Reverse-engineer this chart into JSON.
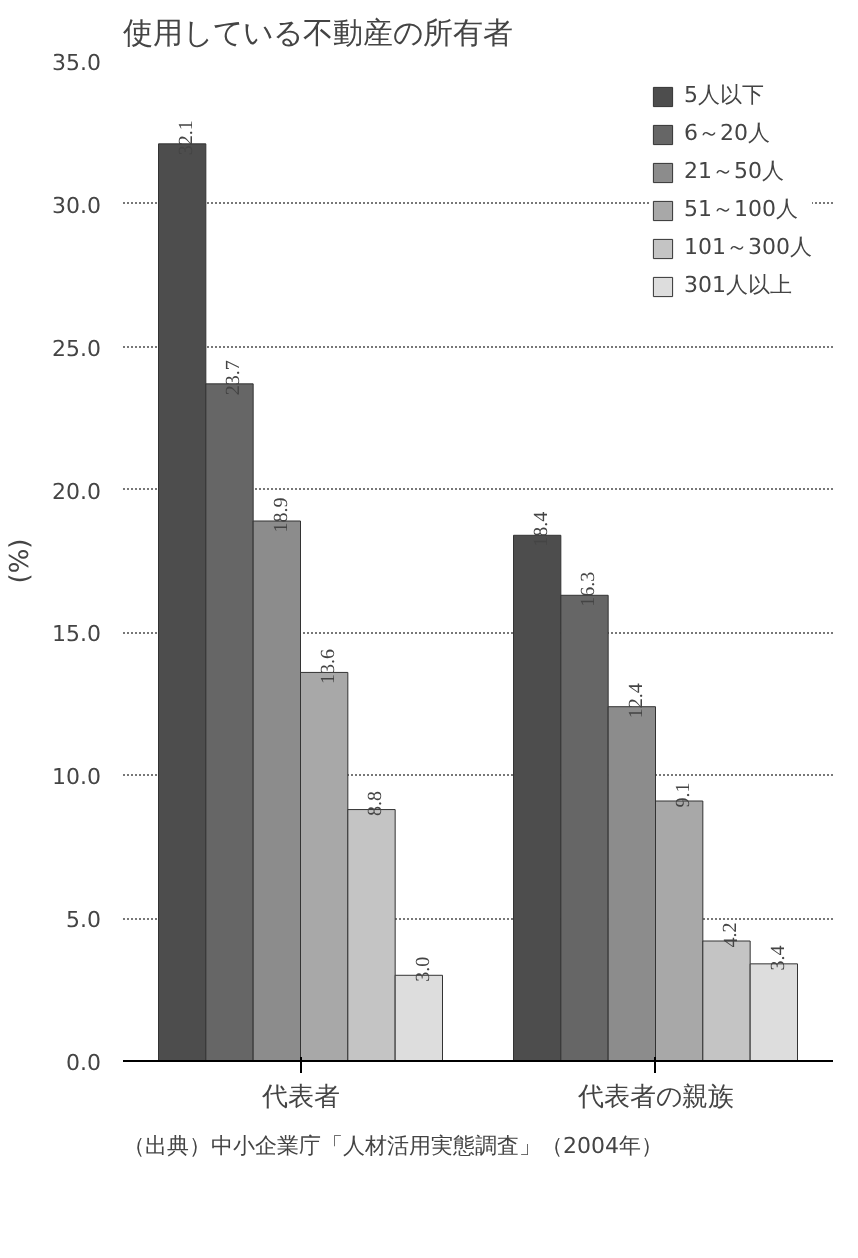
{
  "chart_data": {
    "type": "bar",
    "title": "使用している不動産の所有者",
    "ylabel": "(%)",
    "categories": [
      "代表者",
      "代表者の親族"
    ],
    "series": [
      {
        "name": "5人以下",
        "color": "#4d4d4d",
        "values": [
          32.1,
          18.4
        ],
        "value_labels": [
          "32.1",
          "18.4"
        ]
      },
      {
        "name": "6～20人",
        "color": "#666666",
        "values": [
          23.7,
          16.3
        ],
        "value_labels": [
          "23.7",
          "16.3"
        ]
      },
      {
        "name": "21～50人",
        "color": "#8c8c8c",
        "values": [
          18.9,
          12.4
        ],
        "value_labels": [
          "18.9",
          "12.4"
        ]
      },
      {
        "name": "51～100人",
        "color": "#a8a8a8",
        "values": [
          13.6,
          9.1
        ],
        "value_labels": [
          "13.6",
          "9.1"
        ]
      },
      {
        "name": "101～300人",
        "color": "#c4c4c4",
        "values": [
          8.8,
          4.2
        ],
        "value_labels": [
          "8.8",
          "4.2"
        ]
      },
      {
        "name": "301人以上",
        "color": "#dddddd",
        "values": [
          3.0,
          3.4
        ],
        "value_labels": [
          "3.0",
          "3.4"
        ]
      }
    ],
    "ylim": [
      0,
      35
    ],
    "yticks": [
      {
        "value": 0,
        "label": "0.0"
      },
      {
        "value": 5,
        "label": "5.0"
      },
      {
        "value": 10,
        "label": "10.0"
      },
      {
        "value": 15,
        "label": "15.0"
      },
      {
        "value": 20,
        "label": "20.0"
      },
      {
        "value": 25,
        "label": "25.0"
      },
      {
        "value": 30,
        "label": "30.0"
      },
      {
        "value": 35,
        "label": "35.0"
      }
    ],
    "grid": "y",
    "legend": "top right",
    "annotations": [
      "（出典）中小企業庁「人材活用実態調査」（2004年）"
    ]
  }
}
